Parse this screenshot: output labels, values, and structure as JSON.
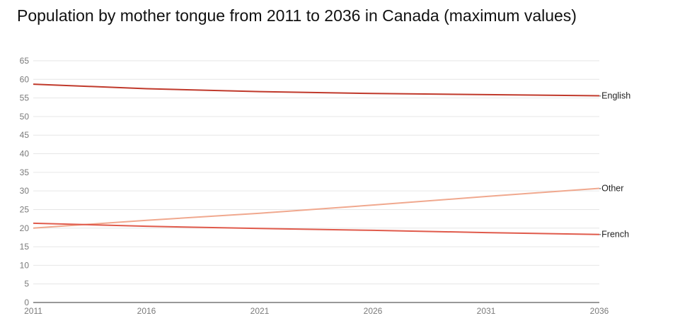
{
  "chart_data": {
    "type": "line",
    "title": "Population by mother tongue from 2011 to 2036 in Canada (maximum values)",
    "xlabel": "",
    "ylabel": "",
    "x": [
      2011,
      2016,
      2021,
      2026,
      2031,
      2036
    ],
    "ylim": [
      0,
      65
    ],
    "yticks": [
      0,
      5,
      10,
      15,
      20,
      25,
      30,
      35,
      40,
      45,
      50,
      55,
      60,
      65
    ],
    "legend": "labels at line ends (right)",
    "series": [
      {
        "name": "English",
        "color": "#c0392b",
        "values": [
          58.7,
          57.5,
          56.7,
          56.2,
          55.9,
          55.6
        ]
      },
      {
        "name": "Other",
        "color": "#f0a88e",
        "values": [
          20.0,
          22.1,
          24.0,
          26.2,
          28.5,
          30.7
        ]
      },
      {
        "name": "French",
        "color": "#e05a4b",
        "values": [
          21.3,
          20.5,
          19.9,
          19.4,
          18.8,
          18.3
        ]
      }
    ]
  }
}
